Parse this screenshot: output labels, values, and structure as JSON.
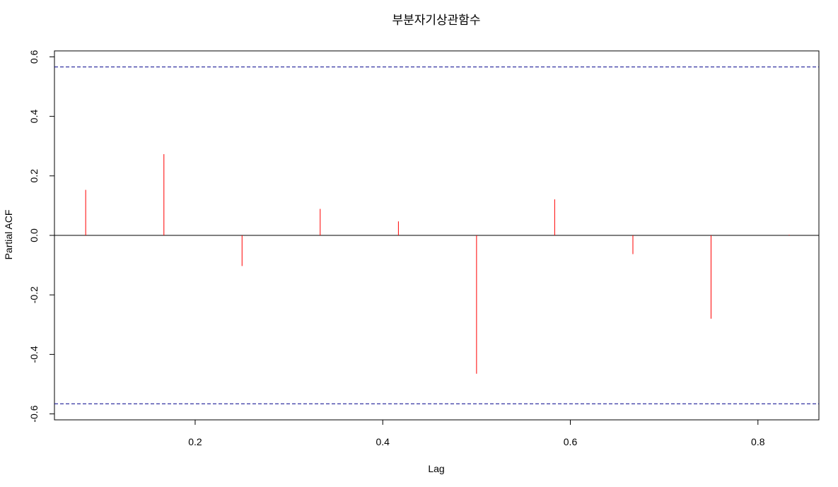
{
  "chart_data": {
    "type": "bar",
    "subtype": "pacf-spikes",
    "title": "부분자기상관함수",
    "xlabel": "Lag",
    "ylabel": "Partial ACF",
    "xlim": [
      0.05,
      0.865
    ],
    "ylim": [
      -0.62,
      0.62
    ],
    "x_ticks": [
      0.2,
      0.4,
      0.6,
      0.8
    ],
    "x_tick_labels": [
      "0.2",
      "0.4",
      "0.6",
      "0.8"
    ],
    "y_ticks": [
      -0.6,
      -0.4,
      -0.2,
      0.0,
      0.2,
      0.4,
      0.6
    ],
    "y_tick_labels": [
      "-0.6",
      "-0.4",
      "-0.2",
      "0.0",
      "0.2",
      "0.4",
      "0.6"
    ],
    "grid": false,
    "legend": "none",
    "series": [
      {
        "x": [
          0.0833,
          0.1667,
          0.25,
          0.3333,
          0.4167,
          0.5,
          0.5833,
          0.6667,
          0.75,
          0.8333
        ],
        "values": [
          0.153,
          0.273,
          -0.103,
          0.089,
          0.047,
          -0.465,
          0.121,
          -0.063,
          -0.28,
          0.002
        ],
        "color": "#ff0000"
      }
    ],
    "confidence_bounds": {
      "upper": 0.566,
      "lower": -0.566,
      "color": "#00008b",
      "style": "dashed"
    },
    "zero_line_color": "#000000"
  }
}
